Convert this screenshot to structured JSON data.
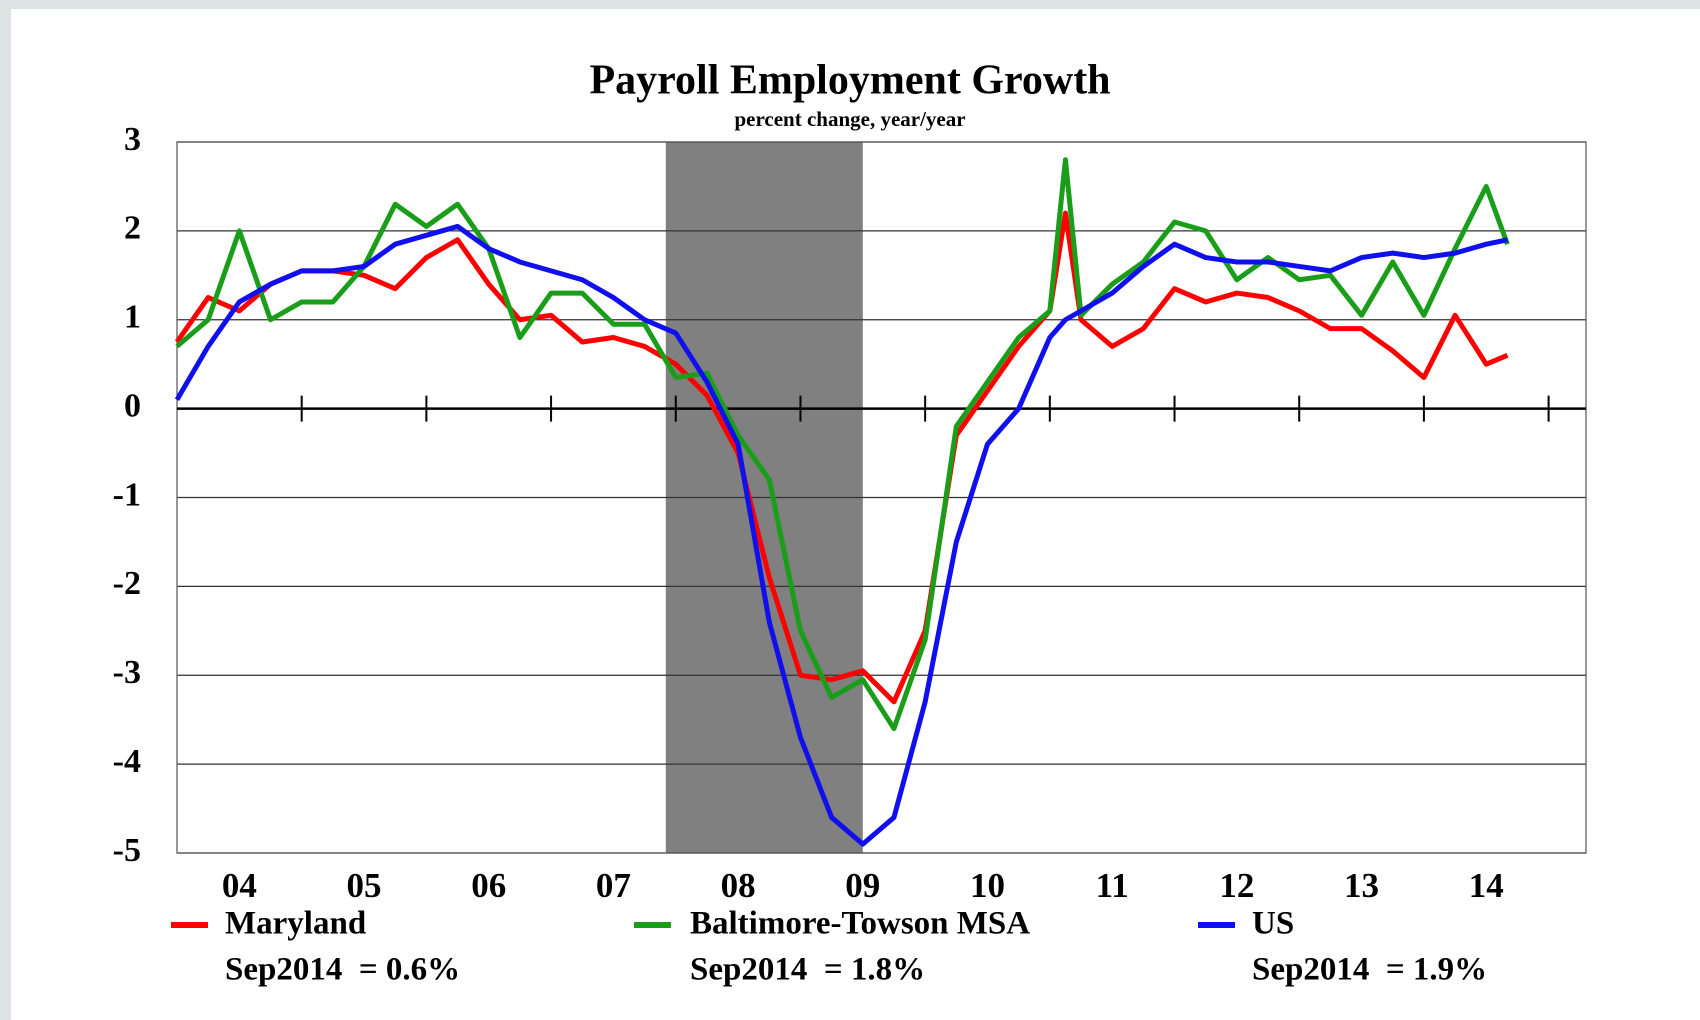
{
  "chart_data": {
    "type": "line",
    "title": "Payroll Employment Growth",
    "subtitle": "percent change, year/year",
    "x": [
      2004,
      2004.25,
      2004.5,
      2004.75,
      2005,
      2005.25,
      2005.5,
      2005.75,
      2006,
      2006.25,
      2006.5,
      2006.75,
      2007,
      2007.25,
      2007.5,
      2007.75,
      2008,
      2008.25,
      2008.5,
      2008.75,
      2009,
      2009.25,
      2009.5,
      2009.75,
      2010,
      2010.25,
      2010.5,
      2010.75,
      2011,
      2011.125,
      2011.25,
      2011.5,
      2011.75,
      2012,
      2012.25,
      2012.5,
      2012.75,
      2013,
      2013.25,
      2013.5,
      2013.75,
      2014,
      2014.25,
      2014.5,
      2014.67
    ],
    "series": [
      {
        "name": "Maryland",
        "color": "#ff0000",
        "latest_label": "Sep2014  = 0.6%",
        "values": [
          0.75,
          1.25,
          1.1,
          1.4,
          1.55,
          1.55,
          1.5,
          1.35,
          1.7,
          1.9,
          1.4,
          1.0,
          1.05,
          0.75,
          0.8,
          0.7,
          0.5,
          0.15,
          -0.5,
          -1.9,
          -3.0,
          -3.05,
          -2.95,
          -3.3,
          -2.5,
          -0.3,
          0.2,
          0.7,
          1.1,
          2.2,
          1.0,
          0.7,
          0.9,
          1.35,
          1.2,
          1.3,
          1.25,
          1.1,
          0.9,
          0.9,
          0.65,
          0.35,
          1.05,
          0.5,
          0.6
        ]
      },
      {
        "name": "Baltimore-Towson MSA",
        "color": "#1a9e1a",
        "latest_label": "Sep2014  = 1.8%",
        "values": [
          0.7,
          1.0,
          2.0,
          1.0,
          1.2,
          1.2,
          1.6,
          2.3,
          2.05,
          2.3,
          1.8,
          0.8,
          1.3,
          1.3,
          0.95,
          0.95,
          0.35,
          0.4,
          -0.3,
          -0.8,
          -2.5,
          -3.25,
          -3.05,
          -3.6,
          -2.6,
          -0.2,
          0.3,
          0.8,
          1.1,
          2.8,
          1.05,
          1.4,
          1.65,
          2.1,
          2.0,
          1.45,
          1.7,
          1.45,
          1.5,
          1.05,
          1.65,
          1.05,
          1.8,
          2.5,
          1.85
        ]
      },
      {
        "name": "US",
        "color": "#1010ee",
        "latest_label": "Sep2014  = 1.9%",
        "values": [
          0.1,
          0.7,
          1.2,
          1.4,
          1.55,
          1.55,
          1.6,
          1.85,
          1.95,
          2.05,
          1.8,
          1.65,
          1.55,
          1.45,
          1.25,
          1.0,
          0.85,
          0.3,
          -0.4,
          -2.4,
          -3.7,
          -4.6,
          -4.9,
          -4.6,
          -3.3,
          -1.5,
          -0.4,
          0.0,
          0.8,
          1.0,
          1.1,
          1.3,
          1.6,
          1.85,
          1.7,
          1.65,
          1.65,
          1.6,
          1.55,
          1.7,
          1.75,
          1.7,
          1.75,
          1.85,
          1.9
        ]
      }
    ],
    "xlim": [
      2004,
      2015.3
    ],
    "xticks": [
      {
        "value": 2004.5,
        "label": "04"
      },
      {
        "value": 2005.5,
        "label": "05"
      },
      {
        "value": 2006.5,
        "label": "06"
      },
      {
        "value": 2007.5,
        "label": "07"
      },
      {
        "value": 2008.5,
        "label": "08"
      },
      {
        "value": 2009.5,
        "label": "09"
      },
      {
        "value": 2010.5,
        "label": "10"
      },
      {
        "value": 2011.5,
        "label": "11"
      },
      {
        "value": 2012.5,
        "label": "12"
      },
      {
        "value": 2013.5,
        "label": "13"
      },
      {
        "value": 2014.5,
        "label": "14"
      }
    ],
    "xtick_marks": [
      2005,
      2006,
      2007,
      2008,
      2009,
      2010,
      2011,
      2012,
      2013,
      2014,
      2015
    ],
    "ylim": [
      -5,
      3
    ],
    "yticks": [
      3,
      2,
      1,
      0,
      -1,
      -2,
      -3,
      -4,
      -5
    ],
    "grid": true,
    "shade_x": [
      2007.92,
      2009.5
    ],
    "shade_color": "#808080"
  }
}
